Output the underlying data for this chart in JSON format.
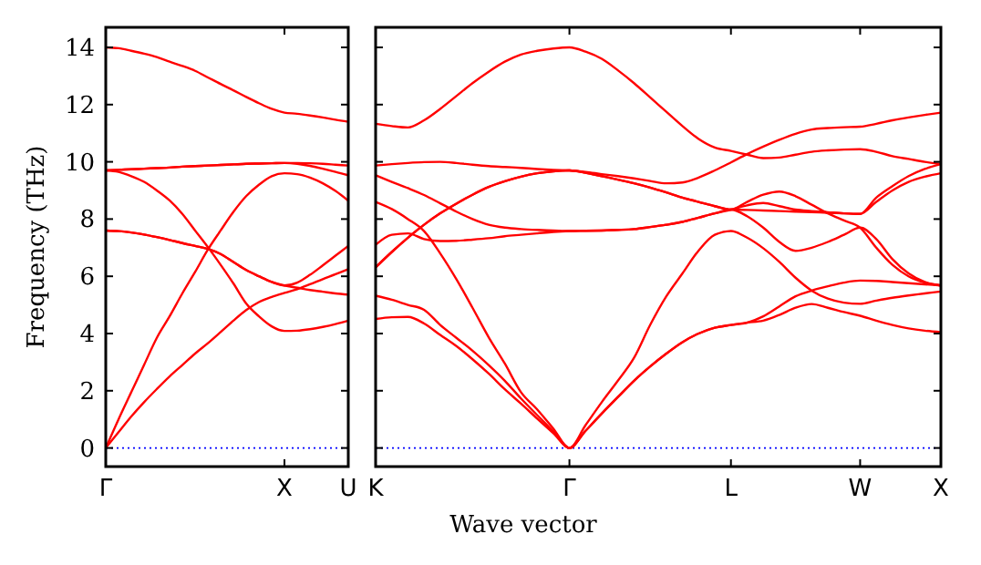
{
  "chart_data": [
    {
      "type": "line",
      "ylabel": "Frequency (THz)",
      "categories": [
        "Γ",
        null,
        null,
        null,
        null,
        null,
        null,
        null,
        null,
        null,
        null,
        null,
        null,
        null,
        "X",
        null,
        null,
        null,
        null,
        "U"
      ],
      "ylim": [
        -0.65,
        14.7
      ],
      "yticks": [
        0,
        2,
        4,
        6,
        8,
        10,
        12,
        14
      ],
      "grid": false,
      "marker": "none",
      "line_style": "solid",
      "ref_lines": [
        {
          "axis": "y",
          "value": 0,
          "color": "#0000ff",
          "line_style": "dotted"
        }
      ],
      "series": [
        {
          "color": "#ff0000",
          "values": [
            14,
            13.97,
            13.88,
            13.78,
            13.66,
            13.5,
            13.35,
            13.18,
            12.95,
            12.72,
            12.5,
            12.27,
            12.05,
            11.85,
            11.72,
            11.68,
            11.62,
            11.55,
            11.47,
            11.4
          ]
        },
        {
          "color": "#ff0000",
          "values": [
            9.7,
            9.72,
            9.74,
            9.76,
            9.78,
            9.8,
            9.83,
            9.85,
            9.87,
            9.89,
            9.91,
            9.93,
            9.94,
            9.95,
            9.96,
            9.96,
            9.95,
            9.93,
            9.9,
            9.87
          ]
        },
        {
          "color": "#ff0000",
          "values": [
            9.7,
            9.72,
            9.74,
            9.76,
            9.78,
            9.8,
            9.83,
            9.85,
            9.87,
            9.89,
            9.91,
            9.93,
            9.94,
            9.95,
            9.96,
            9.93,
            9.86,
            9.76,
            9.65,
            9.53
          ]
        },
        {
          "color": "#ff0000",
          "values": [
            9.7,
            9.65,
            9.5,
            9.3,
            9.0,
            8.65,
            8.18,
            7.6,
            7.02,
            6.4,
            5.75,
            5.05,
            4.6,
            4.25,
            4.09,
            4.1,
            4.15,
            4.23,
            4.33,
            4.45
          ]
        },
        {
          "color": "#ff0000",
          "values": [
            0,
            1.0,
            1.95,
            2.9,
            3.85,
            4.6,
            5.4,
            6.15,
            6.93,
            7.6,
            8.25,
            8.8,
            9.2,
            9.5,
            9.6,
            9.57,
            9.45,
            9.25,
            8.98,
            8.64
          ]
        },
        {
          "color": "#ff0000",
          "values": [
            7.6,
            7.58,
            7.53,
            7.46,
            7.37,
            7.27,
            7.16,
            7.06,
            6.96,
            6.78,
            6.5,
            6.22,
            6.0,
            5.8,
            5.68,
            5.78,
            6.05,
            6.38,
            6.72,
            7.06
          ]
        },
        {
          "color": "#ff0000",
          "values": [
            7.6,
            7.58,
            7.53,
            7.46,
            7.37,
            7.27,
            7.16,
            7.06,
            6.96,
            6.78,
            6.5,
            6.22,
            6.0,
            5.8,
            5.68,
            5.6,
            5.52,
            5.46,
            5.4,
            5.36
          ]
        },
        {
          "color": "#ff0000",
          "values": [
            0,
            0.55,
            1.1,
            1.6,
            2.06,
            2.5,
            2.9,
            3.3,
            3.66,
            4.05,
            4.45,
            4.82,
            5.1,
            5.28,
            5.42,
            5.55,
            5.72,
            5.9,
            6.07,
            6.25
          ]
        }
      ]
    },
    {
      "type": "line",
      "xlabel": "Wave vector",
      "categories": [
        "K",
        null,
        null,
        null,
        null,
        null,
        null,
        null,
        null,
        null,
        null,
        null,
        "Γ",
        null,
        null,
        null,
        null,
        null,
        null,
        null,
        null,
        null,
        "L",
        null,
        null,
        null,
        null,
        null,
        null,
        null,
        "W",
        null,
        null,
        null,
        null,
        "X"
      ],
      "ylim": [
        -0.65,
        14.7
      ],
      "yticks": [
        0,
        2,
        4,
        6,
        8,
        10,
        12,
        14
      ],
      "tick_labels": "x",
      "grid": false,
      "marker": "none",
      "line_style": "solid",
      "ref_lines": [
        {
          "axis": "y",
          "value": 0,
          "color": "#0000ff",
          "line_style": "dotted"
        }
      ],
      "series": [
        {
          "color": "#ff0000",
          "values": [
            11.33,
            11.25,
            11.2,
            11.45,
            11.85,
            12.3,
            12.75,
            13.15,
            13.5,
            13.75,
            13.88,
            13.96,
            14,
            13.85,
            13.6,
            13.2,
            12.75,
            12.25,
            11.75,
            11.25,
            10.8,
            10.5,
            10.38,
            10.25,
            10.13,
            10.15,
            10.25,
            10.35,
            10.4,
            10.43,
            10.44,
            10.35,
            10.2,
            10.1,
            10.0,
            9.92
          ]
        },
        {
          "color": "#ff0000",
          "values": [
            9.87,
            9.92,
            9.96,
            9.99,
            10.0,
            9.96,
            9.9,
            9.85,
            9.82,
            9.79,
            9.75,
            9.72,
            9.7,
            9.65,
            9.57,
            9.5,
            9.42,
            9.33,
            9.25,
            9.28,
            9.45,
            9.7,
            9.98,
            10.27,
            10.53,
            10.77,
            10.98,
            11.13,
            11.18,
            11.21,
            11.23,
            11.33,
            11.45,
            11.55,
            11.64,
            11.72
          ]
        },
        {
          "color": "#ff0000",
          "values": [
            9.53,
            9.3,
            9.08,
            8.84,
            8.55,
            8.26,
            8.0,
            7.8,
            7.7,
            7.65,
            7.62,
            7.6,
            7.58,
            7.59,
            7.6,
            7.62,
            7.65,
            7.72,
            7.8,
            7.9,
            8.05,
            8.2,
            8.33,
            8.1,
            7.7,
            7.2,
            6.89,
            7.0,
            7.2,
            7.45,
            7.7,
            7.3,
            6.6,
            6.1,
            5.8,
            5.68
          ]
        },
        {
          "color": "#ff0000",
          "values": [
            8.6,
            8.35,
            8.0,
            7.58,
            6.8,
            5.9,
            4.9,
            3.87,
            2.95,
            1.95,
            1.35,
            0.68,
            0,
            0.8,
            1.6,
            2.35,
            3.15,
            4.3,
            5.3,
            6.1,
            6.9,
            7.45,
            7.58,
            7.35,
            6.98,
            6.5,
            5.95,
            5.5,
            5.22,
            5.08,
            5.04,
            5.15,
            5.25,
            5.33,
            5.4,
            5.47
          ]
        },
        {
          "color": "#ff0000",
          "values": [
            7.1,
            7.45,
            7.5,
            7.3,
            7.23,
            7.24,
            7.28,
            7.33,
            7.4,
            7.45,
            7.5,
            7.55,
            7.58,
            7.59,
            7.6,
            7.62,
            7.65,
            7.72,
            7.8,
            7.9,
            8.05,
            8.2,
            8.33,
            8.48,
            8.56,
            8.45,
            8.33,
            8.28,
            8.24,
            8.2,
            8.18,
            8.75,
            9.15,
            9.5,
            9.75,
            9.92
          ]
        },
        {
          "color": "#ff0000",
          "values": [
            6.31,
            6.85,
            7.35,
            7.8,
            8.2,
            8.54,
            8.85,
            9.12,
            9.32,
            9.48,
            9.6,
            9.67,
            9.7,
            9.62,
            9.5,
            9.38,
            9.25,
            9.1,
            8.93,
            8.75,
            8.6,
            8.45,
            8.33,
            8.6,
            8.85,
            8.96,
            8.8,
            8.5,
            8.2,
            7.95,
            7.7,
            7.0,
            6.4,
            6.0,
            5.78,
            5.68
          ]
        },
        {
          "color": "#ff0000",
          "values": [
            6.31,
            6.85,
            7.35,
            7.8,
            8.2,
            8.54,
            8.85,
            9.12,
            9.32,
            9.48,
            9.6,
            9.67,
            9.7,
            9.62,
            9.5,
            9.38,
            9.25,
            9.1,
            8.93,
            8.75,
            8.6,
            8.45,
            8.33,
            8.32,
            8.3,
            8.28,
            8.26,
            8.24,
            8.22,
            8.2,
            8.18,
            8.6,
            9.0,
            9.3,
            9.48,
            9.6
          ]
        },
        {
          "color": "#ff0000",
          "values": [
            5.32,
            5.18,
            5.0,
            4.83,
            4.3,
            3.85,
            3.4,
            2.9,
            2.35,
            1.73,
            1.15,
            0.58,
            0,
            0.6,
            1.2,
            1.78,
            2.35,
            2.85,
            3.3,
            3.7,
            4.0,
            4.2,
            4.3,
            4.38,
            4.6,
            4.95,
            5.3,
            5.5,
            5.65,
            5.78,
            5.85,
            5.84,
            5.8,
            5.76,
            5.72,
            5.68
          ]
        },
        {
          "color": "#ff0000",
          "values": [
            4.51,
            4.57,
            4.58,
            4.35,
            3.95,
            3.56,
            3.1,
            2.6,
            2.05,
            1.55,
            1.03,
            0.52,
            0,
            0.6,
            1.2,
            1.78,
            2.35,
            2.85,
            3.3,
            3.7,
            4.0,
            4.2,
            4.3,
            4.38,
            4.45,
            4.65,
            4.9,
            5.03,
            4.9,
            4.75,
            4.62,
            4.45,
            4.3,
            4.18,
            4.1,
            4.05
          ]
        }
      ]
    }
  ]
}
